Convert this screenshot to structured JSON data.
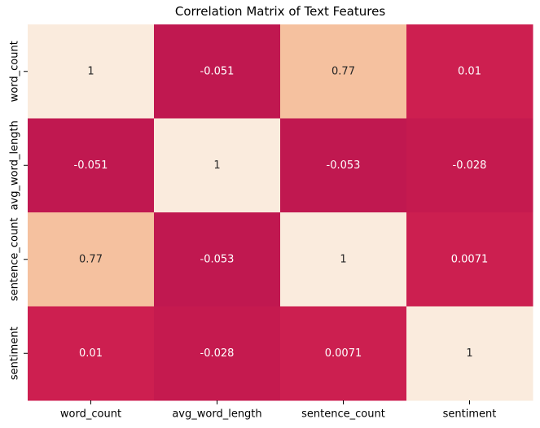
{
  "chart_data": {
    "type": "heatmap",
    "title": "Correlation Matrix of Text Features",
    "xlabel": "",
    "ylabel": "",
    "x_categories": [
      "word_count",
      "avg_word_length",
      "sentence_count",
      "sentiment"
    ],
    "y_categories": [
      "word_count",
      "avg_word_length",
      "sentence_count",
      "sentiment"
    ],
    "values": [
      [
        1,
        -0.051,
        0.77,
        0.01
      ],
      [
        -0.051,
        1,
        -0.053,
        -0.028
      ],
      [
        0.77,
        -0.053,
        1,
        0.0071
      ],
      [
        0.01,
        -0.028,
        0.0071,
        1
      ]
    ],
    "cell_labels": [
      [
        "1",
        "-0.051",
        "0.77",
        "0.01"
      ],
      [
        "-0.051",
        "1",
        "-0.053",
        "-0.028"
      ],
      [
        "0.77",
        "-0.053",
        "1",
        "0.0071"
      ],
      [
        "0.01",
        "-0.028",
        "0.0071",
        "1"
      ]
    ],
    "colorbar": false,
    "grid": false,
    "colormap_stops": [
      {
        "value": -0.06,
        "color": "#be1750"
      },
      {
        "value": 0.0,
        "color": "#cc1d4f"
      },
      {
        "value": 0.77,
        "color": "#f5c19f"
      },
      {
        "value": 1.0,
        "color": "#faebdd"
      }
    ],
    "label_color_light": "#ffffff",
    "label_color_dark": "#262626"
  }
}
